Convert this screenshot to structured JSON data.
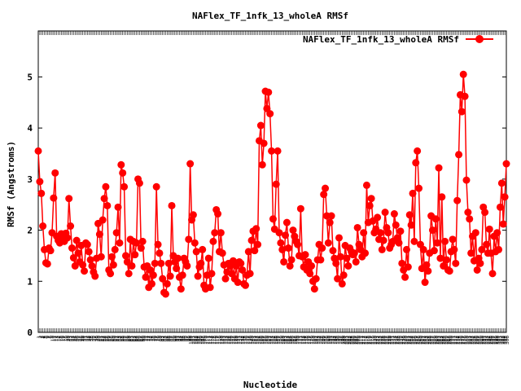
{
  "chart_data": {
    "type": "line",
    "title": "NAFlex_TF_1nfk_13_wholeA RMSf",
    "xlabel": "Nucleotide",
    "ylabel": "RMSf (Angstroms)",
    "ylim": [
      0,
      5.9
    ],
    "y_ticks": [
      0,
      1,
      2,
      3,
      4,
      5
    ],
    "grid": false,
    "legend_position": "top-right",
    "marker": "circle",
    "series": [
      {
        "name": "NAFlex_TF_1nfk_13_wholeA RMSf",
        "color": "#ff0000",
        "values": [
          3.55,
          2.95,
          2.72,
          2.08,
          1.62,
          1.36,
          1.34,
          1.65,
          1.6,
          1.95,
          2.63,
          3.12,
          1.88,
          1.8,
          1.75,
          1.93,
          1.82,
          1.78,
          1.94,
          1.85,
          2.62,
          2.08,
          1.65,
          1.46,
          1.3,
          1.8,
          1.55,
          1.38,
          1.7,
          1.32,
          1.2,
          1.75,
          1.72,
          1.58,
          1.42,
          1.3,
          1.18,
          1.1,
          1.45,
          2.13,
          1.92,
          1.48,
          2.2,
          2.62,
          2.85,
          2.48,
          1.22,
          1.15,
          1.48,
          1.32,
          1.62,
          1.95,
          2.45,
          1.75,
          3.28,
          3.12,
          2.85,
          1.5,
          1.38,
          1.15,
          1.82,
          1.3,
          1.78,
          1.52,
          1.75,
          3.0,
          2.92,
          1.65,
          1.78,
          1.28,
          1.08,
          1.3,
          0.88,
          1.22,
          0.95,
          1.12,
          1.35,
          2.85,
          1.72,
          1.55,
          1.35,
          1.05,
          0.78,
          0.75,
          0.95,
          1.35,
          1.1,
          2.48,
          1.5,
          1.38,
          1.25,
          1.45,
          1.08,
          0.85,
          1.12,
          1.45,
          1.38,
          1.3,
          1.82,
          3.3,
          2.2,
          2.3,
          1.75,
          1.58,
          1.1,
          1.28,
          1.35,
          1.62,
          0.92,
          0.85,
          1.12,
          1.45,
          0.88,
          1.15,
          1.78,
          1.95,
          2.4,
          2.32,
          1.58,
          1.95,
          1.55,
          1.32,
          1.05,
          1.18,
          1.35,
          1.3,
          1.15,
          1.4,
          1.05,
          1.3,
          0.98,
          1.38,
          1.35,
          1.22,
          0.95,
          0.92,
          1.12,
          1.58,
          1.15,
          1.8,
          1.98,
          1.6,
          2.03,
          1.72,
          3.75,
          4.05,
          3.28,
          3.7,
          4.72,
          4.38,
          4.7,
          4.28,
          3.55,
          2.22,
          2.02,
          2.9,
          3.55,
          1.95,
          1.75,
          1.62,
          1.38,
          1.9,
          2.15,
          1.65,
          1.3,
          1.42,
          2.0,
          1.88,
          1.78,
          1.72,
          1.5,
          2.42,
          1.48,
          1.28,
          1.52,
          1.22,
          1.38,
          1.15,
          1.3,
          1.0,
          0.85,
          1.05,
          1.42,
          1.72,
          1.42,
          1.65,
          2.7,
          2.82,
          2.28,
          1.75,
          2.15,
          2.28,
          1.6,
          1.45,
          1.35,
          1.05,
          1.85,
          1.48,
          0.95,
          1.12,
          1.7,
          1.45,
          1.3,
          1.65,
          1.58,
          1.52,
          1.55,
          1.38,
          2.05,
          1.72,
          1.62,
          1.48,
          1.95,
          1.55,
          2.88,
          2.15,
          2.48,
          2.62,
          2.18,
          1.95,
          2.02,
          2.25,
          1.82,
          1.95,
          1.62,
          1.8,
          2.35,
          2.05,
          1.95,
          1.65,
          1.72,
          1.78,
          2.32,
          2.1,
          1.85,
          1.75,
          1.98,
          1.35,
          1.22,
          1.08,
          1.62,
          1.28,
          2.3,
          2.1,
          2.72,
          1.78,
          3.32,
          3.55,
          2.82,
          1.72,
          1.25,
          1.62,
          0.98,
          1.32,
          1.2,
          1.55,
          2.28,
          2.0,
          1.6,
          2.22,
          1.75,
          3.22,
          1.45,
          2.65,
          1.3,
          1.78,
          1.42,
          1.22,
          1.2,
          1.58,
          1.82,
          1.62,
          1.35,
          2.58,
          3.48,
          4.65,
          4.32,
          5.05,
          4.62,
          2.98,
          2.35,
          2.22,
          1.55,
          1.88,
          1.4,
          1.95,
          1.22,
          1.45,
          1.35,
          1.62,
          2.45,
          2.35,
          1.72,
          1.55,
          2.02,
          1.55,
          1.15,
          1.88,
          1.58,
          1.95,
          1.62,
          2.45,
          2.92,
          2.12,
          2.65,
          3.3
        ]
      }
    ]
  }
}
